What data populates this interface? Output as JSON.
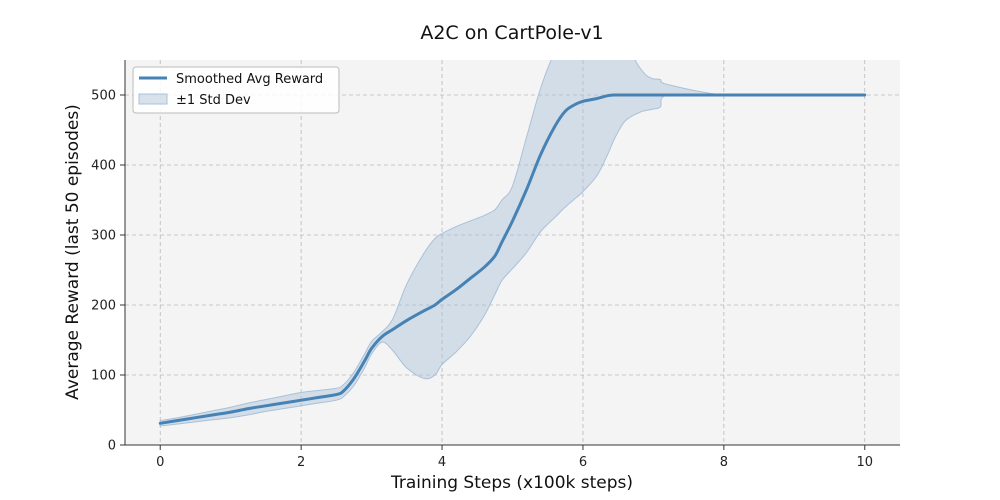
{
  "chart_data": {
    "type": "line",
    "title": "A2C on CartPole-v1",
    "xlabel": "Training Steps (x100k steps)",
    "ylabel": "Average Reward (last 50 episodes)",
    "xlim": [
      -0.5,
      10.5
    ],
    "ylim": [
      0,
      550
    ],
    "xticks": [
      0,
      2,
      4,
      6,
      8,
      10
    ],
    "yticks": [
      0,
      100,
      200,
      300,
      400,
      500
    ],
    "grid": true,
    "legend_position": "top-left",
    "colors": {
      "line": "#4682b4",
      "band": "#a9c1d9",
      "plot_bg": "#f4f4f4"
    },
    "series": [
      {
        "name": "Smoothed Avg Reward",
        "x": [
          0,
          0.25,
          0.5,
          0.75,
          1.0,
          1.25,
          1.5,
          1.75,
          2.0,
          2.25,
          2.5,
          2.6,
          2.75,
          2.9,
          3.0,
          3.15,
          3.3,
          3.5,
          3.75,
          3.9,
          4.0,
          4.2,
          4.4,
          4.6,
          4.75,
          4.85,
          5.0,
          5.2,
          5.4,
          5.6,
          5.75,
          5.9,
          6.0,
          6.2,
          6.35,
          6.45,
          6.6,
          7.0,
          8.0,
          9.0,
          10.0
        ],
        "y": [
          31,
          35,
          39,
          43,
          47,
          52,
          56,
          60,
          64,
          68,
          72,
          77,
          95,
          120,
          138,
          155,
          165,
          178,
          192,
          200,
          208,
          222,
          238,
          254,
          270,
          290,
          320,
          365,
          415,
          455,
          477,
          487,
          491,
          495,
          499,
          500,
          500,
          500,
          500,
          500,
          500
        ]
      },
      {
        "name": "±1 Std Dev",
        "x": [
          0,
          0.25,
          0.5,
          0.75,
          1.0,
          1.25,
          1.5,
          1.75,
          2.0,
          2.25,
          2.5,
          2.6,
          2.75,
          2.9,
          3.0,
          3.15,
          3.3,
          3.5,
          3.75,
          3.9,
          4.0,
          4.2,
          4.4,
          4.6,
          4.75,
          4.85,
          5.0,
          5.2,
          5.4,
          5.6,
          5.75,
          5.9,
          6.0,
          6.2,
          6.35,
          6.45,
          6.6,
          6.8,
          6.9,
          7.0,
          7.1,
          7.2,
          8.0,
          9.0,
          10.0
        ],
        "lower": [
          27,
          30,
          33,
          36,
          39,
          43,
          48,
          52,
          56,
          60,
          64,
          69,
          85,
          110,
          130,
          147,
          135,
          110,
          95,
          100,
          115,
          133,
          155,
          185,
          215,
          235,
          252,
          275,
          305,
          325,
          340,
          353,
          362,
          385,
          415,
          438,
          463,
          475,
          478,
          480,
          483,
          500,
          500,
          500,
          500
        ],
        "upper": [
          35,
          39,
          44,
          49,
          54,
          60,
          65,
          70,
          75,
          78,
          81,
          86,
          104,
          130,
          148,
          162,
          180,
          230,
          275,
          295,
          302,
          312,
          320,
          328,
          336,
          350,
          370,
          440,
          510,
          560,
          570,
          570,
          570,
          570,
          570,
          570,
          570,
          540,
          528,
          523,
          522,
          515,
          500,
          500,
          500
        ]
      }
    ]
  }
}
